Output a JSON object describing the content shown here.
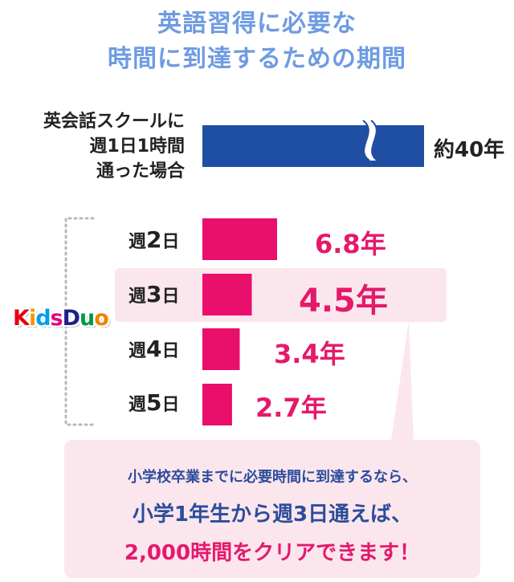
{
  "title": {
    "line1": "英語習得に必要な",
    "line2": "時間に到達するための期間"
  },
  "chart_data": {
    "type": "bar",
    "orientation": "horizontal",
    "categories": [
      "英会話スクールに週1日1時間通った場合",
      "週2日",
      "週3日",
      "週4日",
      "週5日"
    ],
    "category_lines": [
      [
        "英会話スクールに",
        "週1日1時間",
        "通った場合"
      ],
      [
        "週",
        "2",
        "日"
      ],
      [
        "週",
        "3",
        "日"
      ],
      [
        "週",
        "4",
        "日"
      ],
      [
        "週",
        "5",
        "日"
      ]
    ],
    "values": [
      40,
      6.8,
      4.5,
      3.4,
      2.7
    ],
    "value_labels": [
      "約40年",
      "6.8年",
      "4.5年",
      "3.4年",
      "2.7年"
    ],
    "unit": "年",
    "axis_break_on_first_bar": true,
    "highlighted_category": "週3日",
    "group_label": "Kids Duo",
    "colors": {
      "school_bar": "#1f4fa3",
      "kidsduo_bar": "#ea0f6b",
      "highlight_band": "#fce6ee",
      "title": "#6e9be2"
    }
  },
  "logo": {
    "text": "KidsDuo"
  },
  "callout": {
    "line1": "小学校卒業までに必要時間に到達するなら、",
    "line2": "小学1年生から週3日通えば、",
    "line3": "2,000時間をクリアできます！"
  }
}
